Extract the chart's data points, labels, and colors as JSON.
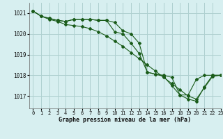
{
  "title": "Graphe pression niveau de la mer (hPa)",
  "background_color": "#d7eff0",
  "grid_color": "#aed0d0",
  "line_color": "#1a5c1a",
  "xlim": [
    -0.5,
    23
  ],
  "ylim": [
    1016.4,
    1021.5
  ],
  "yticks": [
    1017,
    1018,
    1019,
    1020,
    1021
  ],
  "xticks": [
    0,
    1,
    2,
    3,
    4,
    5,
    6,
    7,
    8,
    9,
    10,
    11,
    12,
    13,
    14,
    15,
    16,
    17,
    18,
    19,
    20,
    21,
    22,
    23
  ],
  "series": [
    {
      "x": [
        0,
        1,
        2,
        3,
        4,
        5,
        6,
        7,
        8,
        9,
        10,
        11,
        12,
        13,
        14,
        15,
        16,
        17,
        18,
        19,
        20,
        21,
        22,
        23
      ],
      "y": [
        1021.1,
        1020.85,
        1020.75,
        1020.65,
        1020.6,
        1020.7,
        1020.7,
        1020.7,
        1020.65,
        1020.65,
        1020.55,
        1020.15,
        1020.0,
        1019.55,
        1018.15,
        1018.05,
        1018.0,
        1017.9,
        1017.05,
        1016.85,
        1016.75,
        1017.45,
        1018.0,
        1018.0
      ]
    },
    {
      "x": [
        0,
        1,
        2,
        3,
        4,
        5,
        6,
        7,
        8,
        9,
        10,
        11,
        12,
        13,
        14,
        15,
        16,
        17,
        18,
        19,
        20,
        21,
        22,
        23
      ],
      "y": [
        1021.1,
        1020.85,
        1020.7,
        1020.6,
        1020.45,
        1020.4,
        1020.35,
        1020.25,
        1020.1,
        1019.9,
        1019.65,
        1019.4,
        1019.1,
        1018.8,
        1018.5,
        1018.2,
        1017.9,
        1017.6,
        1017.3,
        1017.0,
        1016.85,
        1017.4,
        1017.95,
        1018.0
      ]
    },
    {
      "x": [
        0,
        1,
        2,
        3,
        4,
        5,
        6,
        7,
        8,
        9,
        10,
        11,
        12,
        13,
        14,
        15,
        16,
        17,
        18,
        19,
        20,
        21,
        22,
        23
      ],
      "y": [
        1021.1,
        1020.85,
        1020.75,
        1020.65,
        1020.6,
        1020.7,
        1020.7,
        1020.7,
        1020.65,
        1020.65,
        1020.1,
        1020.0,
        1019.55,
        1019.05,
        1018.15,
        1018.05,
        1017.95,
        1017.5,
        1017.05,
        1017.05,
        1017.8,
        1018.0,
        1018.0,
        1018.0
      ]
    }
  ]
}
